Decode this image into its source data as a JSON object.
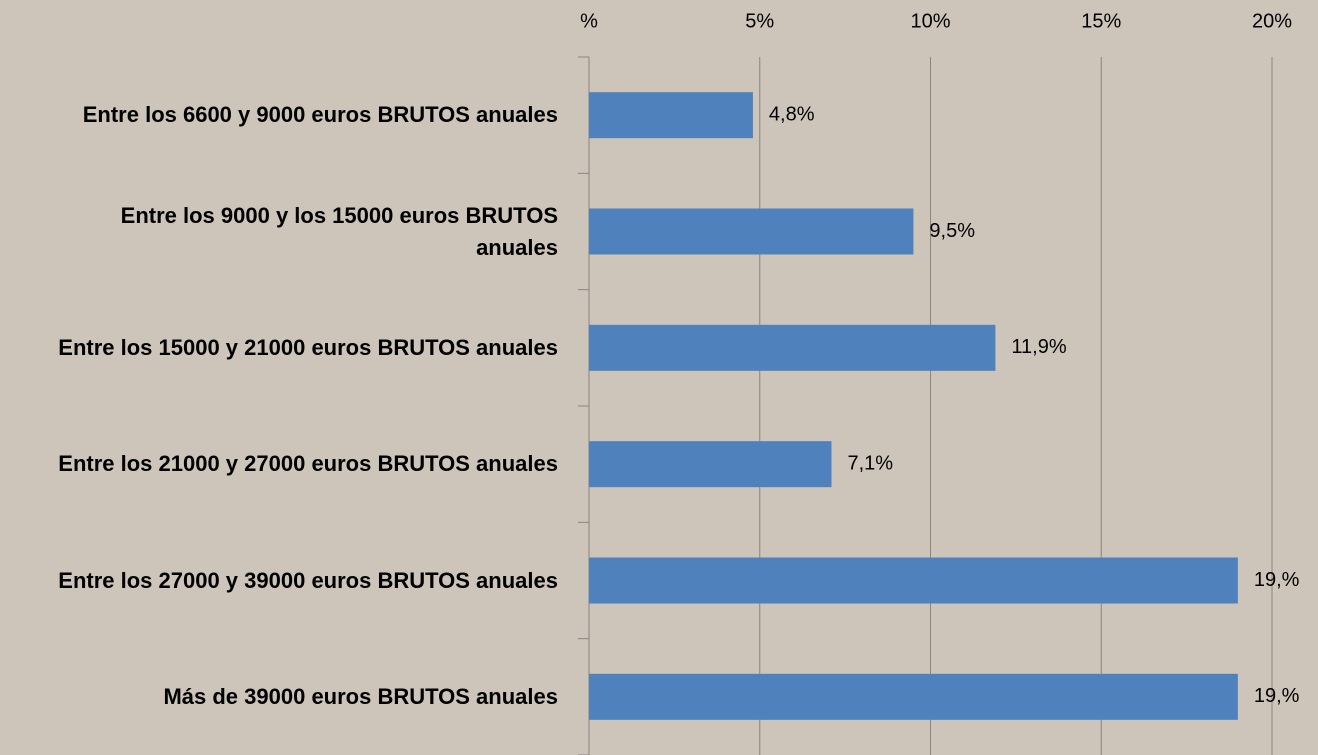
{
  "chart_data": {
    "type": "bar",
    "orientation": "horizontal",
    "categories": [
      "Entre los 6600 y 9000 euros BRUTOS anuales",
      "Entre los 9000 y los 15000 euros BRUTOS anuales",
      "Entre los 15000 y 21000 euros BRUTOS anuales",
      "Entre los 21000 y 27000 euros BRUTOS anuales",
      "Entre los 27000 y 39000 euros BRUTOS anuales",
      "Más de 39000 euros BRUTOS anuales"
    ],
    "values": [
      4.8,
      9.5,
      11.9,
      7.1,
      19,
      19
    ],
    "value_labels": [
      "4,8%",
      "9,5%",
      "11,9%",
      "7,1%",
      "19,%",
      "19,%"
    ],
    "color": "#4f81bd",
    "xlim": [
      0,
      20
    ],
    "xticks": [
      {
        "value": 0,
        "label": "%"
      },
      {
        "value": 5,
        "label": "5%"
      },
      {
        "value": 10,
        "label": "10%"
      },
      {
        "value": 15,
        "label": "15%"
      },
      {
        "value": 20,
        "label": "20%"
      }
    ],
    "grid": true
  }
}
